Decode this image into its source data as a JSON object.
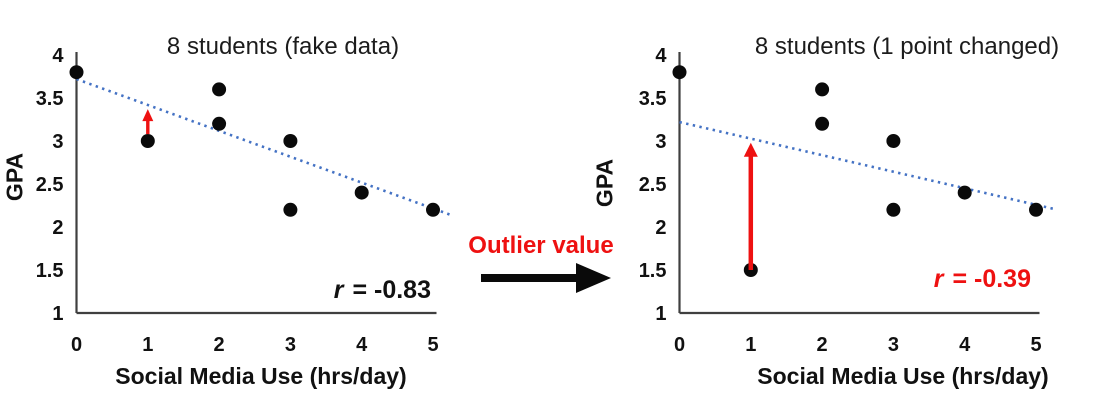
{
  "figure": {
    "background": "#ffffff",
    "annotation": {
      "label": "Outlier value",
      "color": "#ee1111"
    }
  },
  "colors": {
    "point": "#0a0a0a",
    "trendline": "#4472c4",
    "axis": "#3f3f3f",
    "tick_text": "#111111",
    "red": "#ee1111",
    "title_text": "#1c1c1c"
  },
  "chart_data": [
    {
      "type": "scatter",
      "title": "8 students (fake data)",
      "xlabel": "Social Media Use (hrs/day)",
      "ylabel": "GPA",
      "r_var": "r",
      "r_rest": " = -0.83",
      "r_value": -0.83,
      "r_color": "#111111",
      "x_ticks": [
        0,
        1,
        2,
        3,
        4,
        5
      ],
      "y_ticks": [
        4,
        3.5,
        3,
        2.5,
        2,
        1.5,
        1
      ],
      "xlim": [
        0,
        5
      ],
      "ylim": [
        1,
        4
      ],
      "grid": false,
      "points": [
        [
          0,
          3.8
        ],
        [
          1,
          3.0
        ],
        [
          2,
          3.6
        ],
        [
          2,
          3.2
        ],
        [
          3,
          3.0
        ],
        [
          3,
          2.2
        ],
        [
          4,
          2.4
        ],
        [
          5,
          2.2
        ]
      ],
      "trendline": {
        "x_start": 0,
        "gpa_start": 3.72,
        "x_end": 5.25,
        "gpa_end": 2.14
      },
      "outlier_arrow": {
        "x": 1,
        "gpa_from": 3.08,
        "gpa_to": 3.37
      }
    },
    {
      "type": "scatter",
      "title": "8 students (1 point changed)",
      "xlabel": "Social Media Use (hrs/day)",
      "ylabel": "GPA",
      "r_var": "r",
      "r_rest": " = -0.39",
      "r_value": -0.39,
      "r_color": "#ee1111",
      "x_ticks": [
        0,
        1,
        2,
        3,
        4,
        5
      ],
      "y_ticks": [
        4,
        3.5,
        3,
        2.5,
        2,
        1.5,
        1
      ],
      "xlim": [
        0,
        5
      ],
      "ylim": [
        1,
        4
      ],
      "grid": false,
      "points": [
        [
          0,
          3.8
        ],
        [
          1,
          1.5
        ],
        [
          2,
          3.6
        ],
        [
          2,
          3.2
        ],
        [
          3,
          3.0
        ],
        [
          3,
          2.2
        ],
        [
          4,
          2.4
        ],
        [
          5,
          2.2
        ]
      ],
      "trendline": {
        "x_start": 0,
        "gpa_start": 3.22,
        "x_end": 5.25,
        "gpa_end": 2.21
      },
      "outlier_arrow": {
        "x": 1,
        "gpa_from": 1.5,
        "gpa_to": 2.98
      }
    }
  ]
}
